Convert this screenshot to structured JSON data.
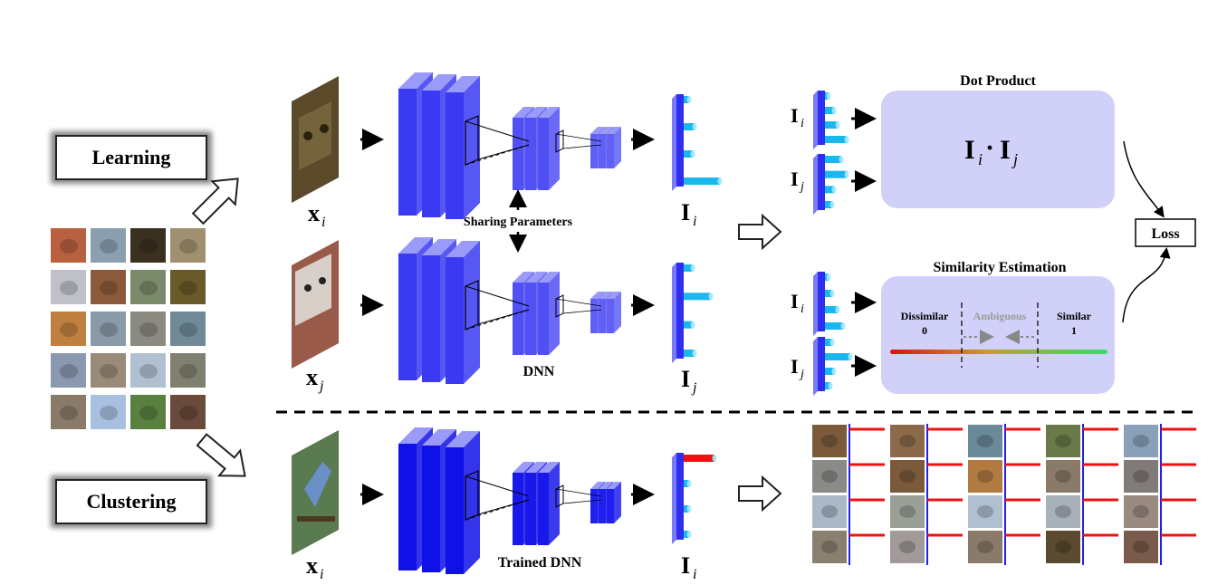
{
  "labels": {
    "learning": "Learning",
    "clustering": "Clustering",
    "sharing_parameters": "Sharing Parameters",
    "dnn": "DNN",
    "trained_dnn": "Trained DNN",
    "dot_product": "Dot Product",
    "similarity_estimation": "Similarity Estimation",
    "loss": "Loss",
    "dissimilar": "Dissimilar",
    "dissimilar_value": "0",
    "ambiguous": "Ambiguous",
    "similar": "Similar",
    "similar_value": "1"
  },
  "math": {
    "x": "x",
    "I": "I",
    "sub_i": "i",
    "sub_j": "j",
    "dot": "·"
  },
  "colors": {
    "layer_dark": "#2e2ef0",
    "layer_light": "#6a6af8",
    "layer_trained": "#1010e8",
    "feature_cyan": "#18b8ee",
    "feature_red": "#ee1111",
    "panel": "#d0d0f8",
    "gradient_start": "#e01010",
    "gradient_end": "#30e070"
  },
  "thumbnails": {
    "dataset_grid": [
      [
        "#b86040",
        "#8aa0b0",
        "#3a3020",
        "#a09070"
      ],
      [
        "#c0c0c8",
        "#8a5a3a",
        "#7a8a6a",
        "#6a5a2a"
      ],
      [
        "#c08040",
        "#8a9aa8",
        "#8a8a80",
        "#708a98"
      ],
      [
        "#8a98b0",
        "#9a8a78",
        "#b0c0d0",
        "#808070"
      ],
      [
        "#8a7a6a",
        "#a8c0e0",
        "#5a8040",
        "#6a4a3a"
      ]
    ],
    "cluster_grid": [
      [
        "#7a5a3a",
        "#8a6a4a",
        "#6a8a9a",
        "#6a7a4a",
        "#8aa0b8"
      ],
      [
        "#8a8a88",
        "#7a5a3a",
        "#b07a40",
        "#8a7a6a",
        "#807a78"
      ],
      [
        "#aab8c8",
        "#9aa098",
        "#b0c0d0",
        "#a8b0b8",
        "#9a8a80"
      ],
      [
        "#8a8070",
        "#a09a98",
        "#8a7a6a",
        "#5a4a30",
        "#7a5a4a"
      ]
    ]
  }
}
